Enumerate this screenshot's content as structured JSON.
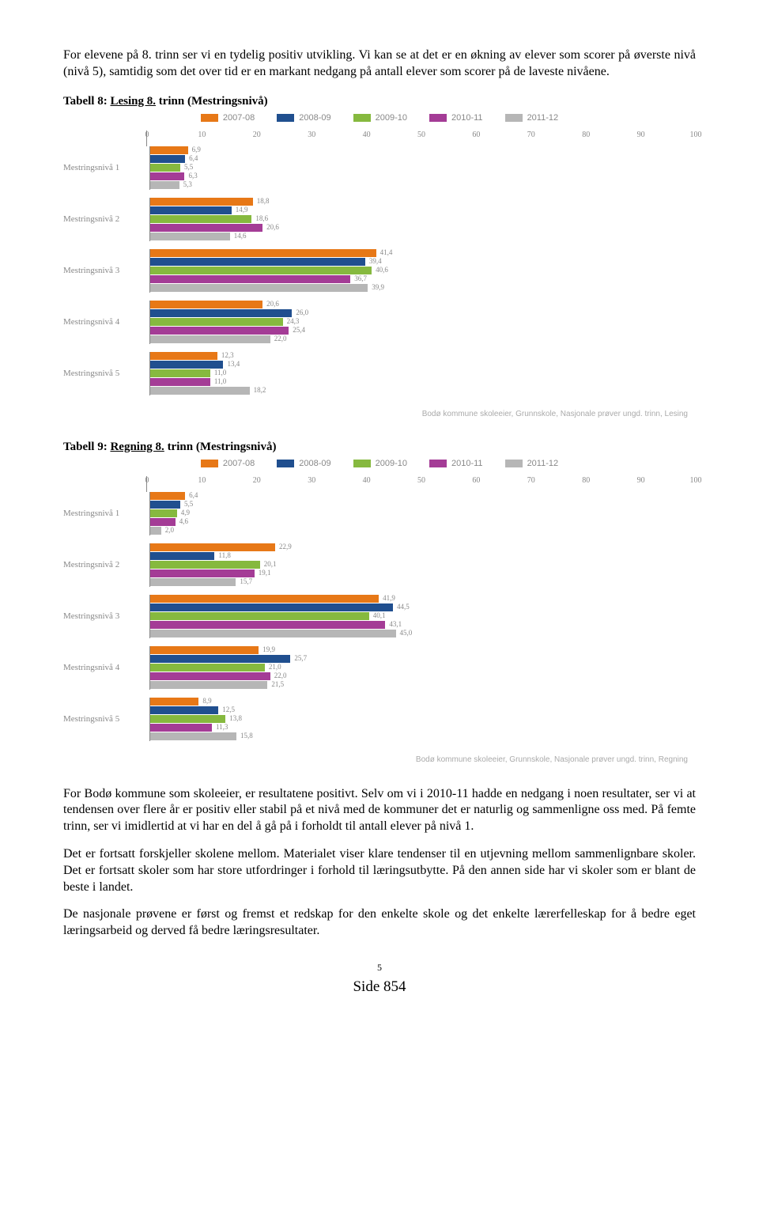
{
  "intro": "For elevene på 8. trinn ser vi en tydelig positiv utvikling. Vi kan se at det er en økning av elever som scorer på øverste nivå (nivå 5), samtidig som det over tid er en markant nedgang på antall elever som scorer på de laveste nivåene.",
  "colors": {
    "series": [
      "#e77817",
      "#204f8f",
      "#86b93f",
      "#a43c96",
      "#b6b6b6"
    ],
    "axis": "#888888",
    "text_muted": "#888888"
  },
  "series_labels": [
    "2007-08",
    "2008-09",
    "2009-10",
    "2010-11",
    "2011-12"
  ],
  "axis": {
    "min": 0,
    "max": 100,
    "ticks": [
      0,
      10,
      20,
      30,
      40,
      50,
      60,
      70,
      80,
      90,
      100
    ]
  },
  "table8": {
    "heading_prefix": "Tabell 8: ",
    "heading_u": "Lesing 8.",
    "heading_suffix": " trinn (Mestringsnivå)",
    "source": "Bodø kommune skoleeier, Grunnskole, Nasjonale prøver ungd. trinn, Lesing",
    "groups": [
      {
        "label": "Mestringsnivå 1",
        "values": [
          6.9,
          6.4,
          5.5,
          6.3,
          5.3
        ]
      },
      {
        "label": "Mestringsnivå 2",
        "values": [
          18.8,
          14.9,
          18.6,
          20.6,
          14.6
        ]
      },
      {
        "label": "Mestringsnivå 3",
        "values": [
          41.4,
          39.4,
          40.6,
          36.7,
          39.9
        ]
      },
      {
        "label": "Mestringsnivå 4",
        "values": [
          20.6,
          26.0,
          24.3,
          25.4,
          22.0
        ]
      },
      {
        "label": "Mestringsnivå 5",
        "values": [
          12.3,
          13.4,
          11.0,
          11.0,
          18.2
        ]
      }
    ]
  },
  "table9": {
    "heading_prefix": "Tabell 9: ",
    "heading_u": "Regning 8.",
    "heading_suffix": " trinn (Mestringsnivå)",
    "source": "Bodø kommune skoleeier, Grunnskole, Nasjonale prøver ungd. trinn, Regning",
    "groups": [
      {
        "label": "Mestringsnivå 1",
        "values": [
          6.4,
          5.5,
          4.9,
          4.6,
          2.0
        ]
      },
      {
        "label": "Mestringsnivå 2",
        "values": [
          22.9,
          11.8,
          20.1,
          19.1,
          15.7
        ]
      },
      {
        "label": "Mestringsnivå 3",
        "values": [
          41.9,
          44.5,
          40.1,
          43.1,
          45.0
        ]
      },
      {
        "label": "Mestringsnivå 4",
        "values": [
          19.9,
          25.7,
          21.0,
          22.0,
          21.5
        ]
      },
      {
        "label": "Mestringsnivå 5",
        "values": [
          8.9,
          12.5,
          13.8,
          11.3,
          15.8
        ]
      }
    ]
  },
  "body1": "For Bodø kommune som skoleeier, er resultatene positivt. Selv om vi i 2010-11 hadde en nedgang i noen resultater, ser vi at tendensen over flere år er positiv eller stabil på et nivå med de kommuner det er naturlig og sammenligne oss med. På femte trinn, ser vi imidlertid at vi har en del å gå på i forholdt til antall elever på nivå 1.",
  "body2": "Det er fortsatt forskjeller skolene mellom. Materialet viser klare tendenser til en utjevning mellom sammenlignbare skoler. Det er fortsatt skoler som har store utfordringer i forhold til læringsutbytte. På den annen side har vi skoler som er blant de beste i landet.",
  "body3": "De nasjonale prøvene er først og fremst et redskap for den enkelte skole og det enkelte lærerfelleskap for å bedre eget læringsarbeid og derved få bedre læringsresultater.",
  "page_number": "5",
  "side_label": "Side 854"
}
